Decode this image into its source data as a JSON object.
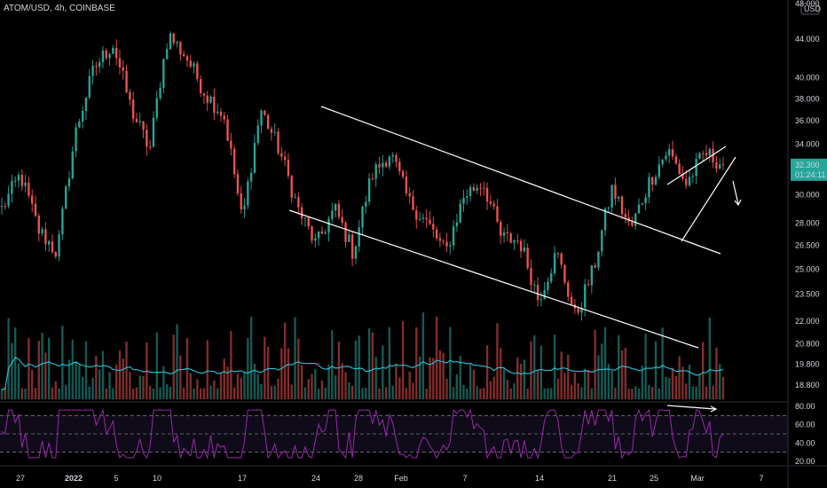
{
  "header": {
    "title": "ATOM/USD, 4h, COINBASE"
  },
  "chart_data": {
    "type": "candlestick",
    "currency_label": "USD",
    "current_price": {
      "value": "32.300",
      "countdown": "01:24:11",
      "color": "#26a69a"
    },
    "price_axis": {
      "ticks": [
        "48.000",
        "44.000",
        "40.000",
        "38.000",
        "36.000",
        "34.000",
        "30.000",
        "28.000",
        "26.500",
        "25.000",
        "23.500",
        "22.000",
        "20.800",
        "19.800",
        "18.800"
      ],
      "scale": "log"
    },
    "rsi_axis": {
      "ticks": [
        "80.00",
        "60.00",
        "40.00",
        "20.00"
      ],
      "levels": [
        70,
        50,
        30
      ],
      "range": [
        20,
        80
      ]
    },
    "time_axis": [
      {
        "label": "27",
        "bold": false
      },
      {
        "label": "2022",
        "bold": true
      },
      {
        "label": "5",
        "bold": false
      },
      {
        "label": "10",
        "bold": false
      },
      {
        "label": "17",
        "bold": false
      },
      {
        "label": "24",
        "bold": false
      },
      {
        "label": "28",
        "bold": false
      },
      {
        "label": "Feb",
        "bold": false
      },
      {
        "label": "7",
        "bold": false
      },
      {
        "label": "14",
        "bold": false
      },
      {
        "label": "21",
        "bold": false
      },
      {
        "label": "25",
        "bold": false
      },
      {
        "label": "Mar",
        "bold": false
      },
      {
        "label": "7",
        "bold": false
      }
    ],
    "key_prices": [
      29.0,
      31.5,
      27.5,
      26.0,
      35.0,
      41.0,
      43.5,
      37.0,
      33.5,
      44.5,
      42.0,
      38.5,
      36.5,
      28.0,
      37.0,
      33.5,
      29.0,
      26.5,
      29.0,
      26.0,
      31.5,
      33.3,
      29.5,
      28.0,
      26.0,
      30.0,
      31.0,
      27.0,
      26.8,
      23.2,
      26.0,
      22.2,
      25.0,
      30.5,
      27.5,
      31.0,
      33.5,
      30.8,
      33.3,
      32.3
    ],
    "colors": {
      "up": "#26a69a",
      "down": "#ef5350",
      "ma": "#26c6da",
      "rsi": "#9c27b0",
      "trendline": "#ffffff"
    },
    "annotations": [
      "descending channel",
      "rising wedge",
      "bearish RSI divergence",
      "downward arrow"
    ]
  }
}
